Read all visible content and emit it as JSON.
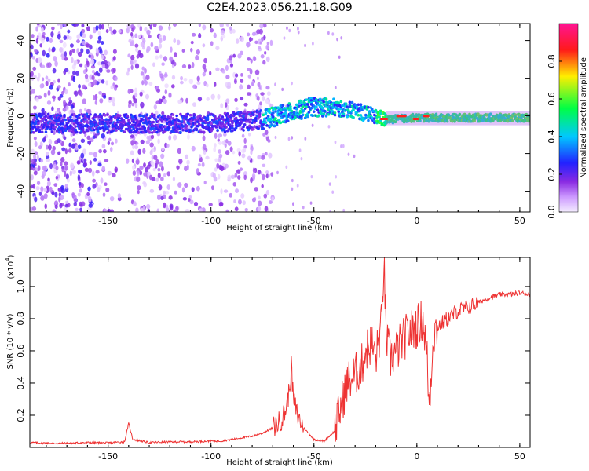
{
  "title": "C2E4.2023.056.21.18.G09",
  "colors": {
    "snr_line": "#ee3333",
    "background": "#ffffff",
    "axis": "#000000"
  },
  "chart_data": [
    {
      "type": "heatmap",
      "xlabel": "Height of straight line (km)",
      "ylabel": "Frequency (Hz)",
      "xlim": [
        -188,
        55
      ],
      "ylim": [
        -51,
        49
      ],
      "xticks": [
        "-150",
        "-100",
        "-50",
        "0",
        "50"
      ],
      "yticks": [
        "-40",
        "-20",
        "0",
        "20",
        "40"
      ],
      "colorbar": {
        "label": "Normalized spectral amplitude",
        "range": [
          0.0,
          1.0
        ],
        "ticks": [
          "0.0",
          "0.2",
          "0.4",
          "0.6",
          "0.8"
        ],
        "colormap": "rainbow (purple-blue-cyan-green-yellow-red-magenta)"
      },
      "features": {
        "signal_band_center_hz": [
          {
            "x": -150,
            "y": -4
          },
          {
            "x": -100,
            "y": -4
          },
          {
            "x": -75,
            "y": -2
          },
          {
            "x": -50,
            "y": 5
          },
          {
            "x": -30,
            "y": 3
          },
          {
            "x": -15,
            "y": -2
          },
          {
            "x": 0,
            "y": -1
          },
          {
            "x": 25,
            "y": -1
          },
          {
            "x": 55,
            "y": -1
          }
        ],
        "noise_region_x": [
          -188,
          -80
        ]
      }
    },
    {
      "type": "line",
      "xlabel": "Height of straight line (km)",
      "ylabel": "SNR (10 * v/v)",
      "scale_label": "(x10",
      "scale_exp": "4",
      "xlim": [
        -188,
        55
      ],
      "ylim": [
        0,
        1.18
      ],
      "xticks": [
        "-150",
        "-100",
        "-50",
        "0",
        "50"
      ],
      "yticks": [
        "0.2",
        "0.4",
        "0.6",
        "0.8",
        "1.0"
      ],
      "series": [
        {
          "points": [
            [
              -188,
              0.03
            ],
            [
              -175,
              0.025
            ],
            [
              -160,
              0.03
            ],
            [
              -150,
              0.028
            ],
            [
              -142,
              0.035
            ],
            [
              -140,
              0.15
            ],
            [
              -138,
              0.05
            ],
            [
              -130,
              0.03
            ],
            [
              -120,
              0.035
            ],
            [
              -110,
              0.035
            ],
            [
              -100,
              0.04
            ],
            [
              -95,
              0.04
            ],
            [
              -90,
              0.05
            ],
            [
              -85,
              0.06
            ],
            [
              -80,
              0.07
            ],
            [
              -75,
              0.09
            ],
            [
              -70,
              0.12
            ],
            [
              -66,
              0.17
            ],
            [
              -64,
              0.22
            ],
            [
              -62,
              0.35
            ],
            [
              -61,
              0.5
            ],
            [
              -60,
              0.3
            ],
            [
              -58,
              0.2
            ],
            [
              -55,
              0.12
            ],
            [
              -52,
              0.08
            ],
            [
              -50,
              0.05
            ],
            [
              -45,
              0.04
            ],
            [
              -40,
              0.1
            ],
            [
              -37,
              0.25
            ],
            [
              -34,
              0.4
            ],
            [
              -30,
              0.45
            ],
            [
              -27,
              0.5
            ],
            [
              -25,
              0.6
            ],
            [
              -22,
              0.65
            ],
            [
              -20,
              0.55
            ],
            [
              -17,
              0.78
            ],
            [
              -16,
              1.18
            ],
            [
              -15,
              0.7
            ],
            [
              -13,
              0.55
            ],
            [
              -10,
              0.6
            ],
            [
              -5,
              0.7
            ],
            [
              0,
              0.75
            ],
            [
              3,
              0.8
            ],
            [
              5,
              0.55
            ],
            [
              6,
              0.25
            ],
            [
              8,
              0.7
            ],
            [
              10,
              0.75
            ],
            [
              15,
              0.8
            ],
            [
              20,
              0.85
            ],
            [
              25,
              0.87
            ],
            [
              30,
              0.9
            ],
            [
              35,
              0.93
            ],
            [
              40,
              0.95
            ],
            [
              45,
              0.95
            ],
            [
              50,
              0.96
            ],
            [
              55,
              0.95
            ]
          ]
        }
      ]
    }
  ]
}
